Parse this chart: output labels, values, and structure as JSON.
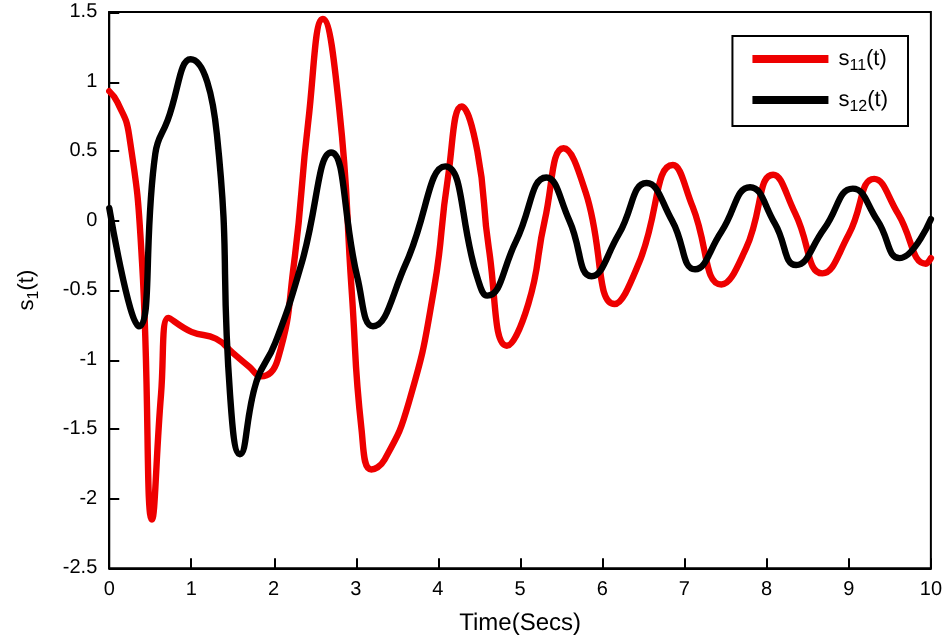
{
  "chart_data": {
    "type": "line",
    "xlabel": "Time(Secs)",
    "ylabel": "s$_{1}$(t)",
    "xlim": [
      0,
      10
    ],
    "xticks": [
      0,
      1,
      2,
      3,
      4,
      5,
      6,
      7,
      8,
      9,
      10
    ],
    "ylim": [
      -2.5,
      1.5
    ],
    "yticks": [
      -2.5,
      -2,
      -1.5,
      -1,
      -0.5,
      0,
      0.5,
      1,
      1.5
    ],
    "grid": false,
    "legend": "top right",
    "line_style": "solid",
    "marker": "none",
    "series": [
      {
        "name": "s$_{11}$(t)",
        "color": "#ee0000",
        "x": [
          0,
          0.1,
          0.24,
          0.4,
          0.52,
          0.63,
          0.72,
          1.0,
          1.3,
          1.5,
          1.7,
          1.85,
          2.05,
          2.25,
          2.42,
          2.6,
          2.8,
          2.95,
          3.07,
          3.19,
          3.35,
          3.65,
          3.95,
          4.12,
          4.29,
          4.48,
          4.62,
          4.84,
          5.1,
          5.3,
          5.53,
          5.8,
          6.15,
          6.45,
          6.86,
          7.1,
          7.45,
          7.75,
          8.08,
          8.35,
          8.68,
          9.0,
          9.31,
          9.6,
          9.94,
          10
        ],
        "values": [
          0.93,
          0.85,
          0.62,
          -0.31,
          -2.15,
          -1.25,
          -0.7,
          -0.8,
          -0.85,
          -0.95,
          -1.05,
          -1.12,
          -1.0,
          -0.3,
          0.7,
          1.45,
          0.8,
          -0.5,
          -1.5,
          -1.79,
          -1.72,
          -1.3,
          -0.5,
          0.3,
          0.82,
          0.5,
          -0.2,
          -0.9,
          -0.6,
          0.0,
          0.52,
          0.2,
          -0.6,
          -0.3,
          0.4,
          0.1,
          -0.46,
          -0.2,
          0.33,
          0.05,
          -0.38,
          -0.1,
          0.3,
          0.05,
          -0.31,
          -0.27
        ]
      },
      {
        "name": "s$_{12}$(t)",
        "color": "#000000",
        "x": [
          0,
          0.36,
          0.56,
          0.71,
          0.99,
          1.31,
          1.47,
          1.59,
          1.79,
          2.02,
          2.34,
          2.7,
          3.02,
          3.21,
          3.61,
          4.09,
          4.48,
          4.6,
          4.95,
          5.32,
          5.6,
          5.87,
          6.2,
          6.54,
          6.85,
          7.13,
          7.45,
          7.8,
          8.1,
          8.36,
          8.7,
          9.05,
          9.35,
          9.62,
          10
        ],
        "values": [
          0.09,
          -0.76,
          0.48,
          0.72,
          1.16,
          0.62,
          -1.25,
          -1.68,
          -1.16,
          -0.88,
          -0.31,
          0.49,
          -0.41,
          -0.76,
          -0.31,
          0.39,
          -0.41,
          -0.54,
          -0.15,
          0.31,
          0.0,
          -0.4,
          -0.1,
          0.27,
          0.0,
          -0.35,
          -0.08,
          0.24,
          -0.02,
          -0.32,
          -0.06,
          0.23,
          0.0,
          -0.27,
          0.01
        ]
      }
    ]
  }
}
